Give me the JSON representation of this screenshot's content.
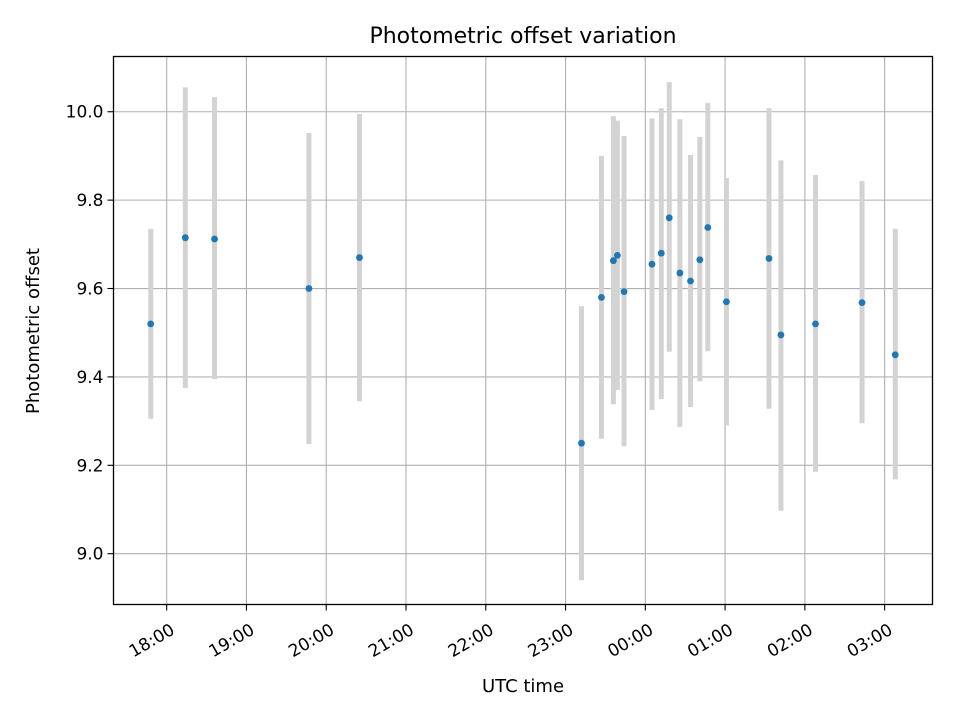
{
  "chart_data": {
    "type": "scatter",
    "title": "Photometric offset variation",
    "xlabel": "UTC time",
    "ylabel": "Photometric offset",
    "xlim": [
      "17:20",
      "03:36"
    ],
    "ylim": [
      8.885,
      10.125
    ],
    "grid": true,
    "xticks": [
      "18:00",
      "19:00",
      "20:00",
      "21:00",
      "22:00",
      "23:00",
      "00:00",
      "01:00",
      "02:00",
      "03:00"
    ],
    "yticks": [
      "9.0",
      "9.2",
      "9.4",
      "9.6",
      "9.8",
      "10.0"
    ],
    "series": [
      {
        "marker_color": "#1f77b4",
        "errorbar_color": "#d3d3d3",
        "points": [
          {
            "x": "17:48",
            "y": 9.52,
            "y_low": 9.305,
            "y_high": 9.735
          },
          {
            "x": "18:14",
            "y": 9.715,
            "y_low": 9.375,
            "y_high": 10.055
          },
          {
            "x": "18:36",
            "y": 9.712,
            "y_low": 9.395,
            "y_high": 10.033
          },
          {
            "x": "19:47",
            "y": 9.6,
            "y_low": 9.248,
            "y_high": 9.952
          },
          {
            "x": "20:25",
            "y": 9.67,
            "y_low": 9.345,
            "y_high": 9.995
          },
          {
            "x": "23:12",
            "y": 9.25,
            "y_low": 8.94,
            "y_high": 9.56
          },
          {
            "x": "23:27",
            "y": 9.58,
            "y_low": 9.26,
            "y_high": 9.9
          },
          {
            "x": "23:36",
            "y": 9.663,
            "y_low": 9.338,
            "y_high": 9.99
          },
          {
            "x": "23:39",
            "y": 9.675,
            "y_low": 9.37,
            "y_high": 9.98
          },
          {
            "x": "23:44",
            "y": 9.593,
            "y_low": 9.243,
            "y_high": 9.945
          },
          {
            "x": "00:05",
            "y": 9.655,
            "y_low": 9.325,
            "y_high": 9.985
          },
          {
            "x": "00:12",
            "y": 9.68,
            "y_low": 9.35,
            "y_high": 10.008
          },
          {
            "x": "00:18",
            "y": 9.76,
            "y_low": 9.457,
            "y_high": 10.067
          },
          {
            "x": "00:26",
            "y": 9.635,
            "y_low": 9.287,
            "y_high": 9.983
          },
          {
            "x": "00:34",
            "y": 9.617,
            "y_low": 9.332,
            "y_high": 9.902
          },
          {
            "x": "00:41",
            "y": 9.665,
            "y_low": 9.39,
            "y_high": 9.943
          },
          {
            "x": "00:47",
            "y": 9.738,
            "y_low": 9.458,
            "y_high": 10.02
          },
          {
            "x": "01:01",
            "y": 9.57,
            "y_low": 9.29,
            "y_high": 9.85
          },
          {
            "x": "01:33",
            "y": 9.668,
            "y_low": 9.328,
            "y_high": 10.008
          },
          {
            "x": "01:42",
            "y": 9.495,
            "y_low": 9.097,
            "y_high": 9.89
          },
          {
            "x": "02:08",
            "y": 9.52,
            "y_low": 9.185,
            "y_high": 9.857
          },
          {
            "x": "02:43",
            "y": 9.568,
            "y_low": 9.295,
            "y_high": 9.843
          },
          {
            "x": "03:08",
            "y": 9.45,
            "y_low": 9.168,
            "y_high": 9.735
          }
        ]
      }
    ]
  }
}
